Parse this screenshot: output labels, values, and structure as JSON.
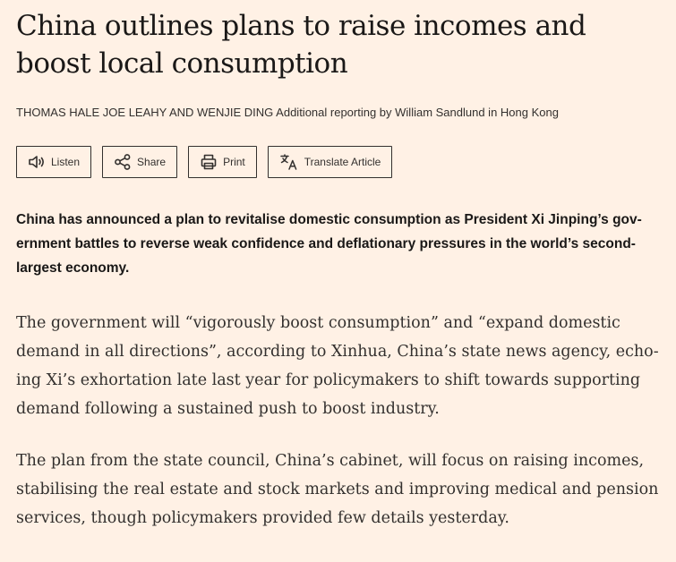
{
  "article": {
    "headline": "China outlines plans to raise incomes and boost local consumption",
    "byline_authors": "Thomas Hale Joe Leahy and Wenjie Ding",
    "byline_extra": "Additional reporting by William Sandlund in Hong Kong",
    "actions": {
      "listen": "Listen",
      "share": "Share",
      "print": "Print",
      "translate": "Translate Article"
    },
    "standfirst": "China has announced a plan to revitalise domestic consumption as President Xi Jinping’s gov­ernment battles to reverse weak confidence and deflationary pressures in the world’s second-largest economy.",
    "paragraphs": [
      "The government will “vigorously boost consumption” and “expand domestic demand in all directions”, according to Xinhua, China’s state news agency, echo­ing Xi’s exhortation late last year for policymakers to shift towards supporting demand following a sustained push to boost industry.",
      "The plan from the state council, China’s cabinet, will focus on raising incomes, stabilising the real estate and stock markets and improving medical and pension services, though policymakers provided few details yesterday."
    ]
  },
  "colors": {
    "background": "#fff1e5",
    "text": "#33302e",
    "heading": "#1a1817"
  },
  "icons": [
    "speaker-icon",
    "share-icon",
    "printer-icon",
    "translate-icon"
  ]
}
